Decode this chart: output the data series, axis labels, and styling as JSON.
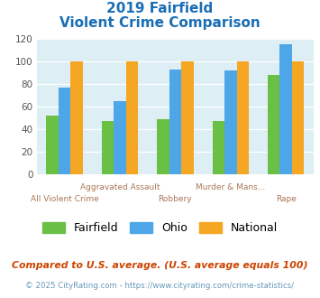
{
  "title_line1": "2019 Fairfield",
  "title_line2": "Violent Crime Comparison",
  "cat_line1": [
    "",
    "Aggravated Assault",
    "",
    "Murder & Mans...",
    ""
  ],
  "cat_line2": [
    "All Violent Crime",
    "",
    "Robbery",
    "",
    "Rape"
  ],
  "fairfield": [
    52,
    47,
    49,
    47,
    88
  ],
  "ohio": [
    77,
    65,
    93,
    92,
    115
  ],
  "national": [
    100,
    100,
    100,
    100,
    100
  ],
  "colors": {
    "fairfield": "#6abf45",
    "ohio": "#4da6e8",
    "national": "#f5a623"
  },
  "ylim": [
    0,
    120
  ],
  "yticks": [
    0,
    20,
    40,
    60,
    80,
    100,
    120
  ],
  "bg_color": "#ddeef5",
  "title_color": "#1a6eb5",
  "xtick_color": "#aa7755",
  "footer_note": "Compared to U.S. average. (U.S. average equals 100)",
  "footer_credit": "© 2025 CityRating.com - https://www.cityrating.com/crime-statistics/",
  "legend_labels": [
    "Fairfield",
    "Ohio",
    "National"
  ]
}
